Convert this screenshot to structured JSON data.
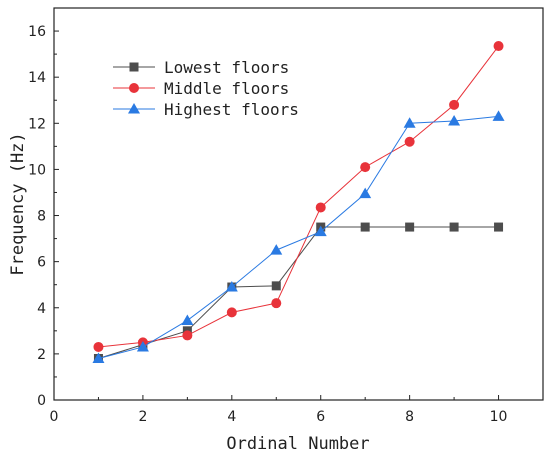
{
  "chart_data": {
    "type": "line",
    "title": "",
    "xlabel": "Ordinal Number",
    "ylabel": "Frequency (Hz)",
    "xlim": [
      0,
      11
    ],
    "ylim": [
      0,
      17
    ],
    "xticks": [
      0,
      2,
      4,
      6,
      8,
      10
    ],
    "yticks": [
      0,
      2,
      4,
      6,
      8,
      10,
      12,
      14,
      16
    ],
    "x": [
      1,
      2,
      3,
      4,
      5,
      6,
      7,
      8,
      9,
      10
    ],
    "grid": false,
    "legend_position": "top-left",
    "series": [
      {
        "name": "Lowest floors",
        "marker": "square",
        "color": "#4d4d4d",
        "values": [
          1.8,
          2.4,
          3.0,
          4.9,
          4.95,
          7.5,
          7.5,
          7.5,
          7.5,
          7.5
        ]
      },
      {
        "name": "Middle floors",
        "marker": "circle",
        "color": "#e8333a",
        "values": [
          2.3,
          2.5,
          2.8,
          3.8,
          4.2,
          8.35,
          10.1,
          11.2,
          12.8,
          15.35
        ]
      },
      {
        "name": "Highest floors",
        "marker": "triangle",
        "color": "#2a7ae2",
        "values": [
          1.8,
          2.3,
          3.45,
          4.9,
          6.5,
          7.3,
          8.95,
          12.0,
          12.1,
          12.3
        ]
      }
    ]
  }
}
